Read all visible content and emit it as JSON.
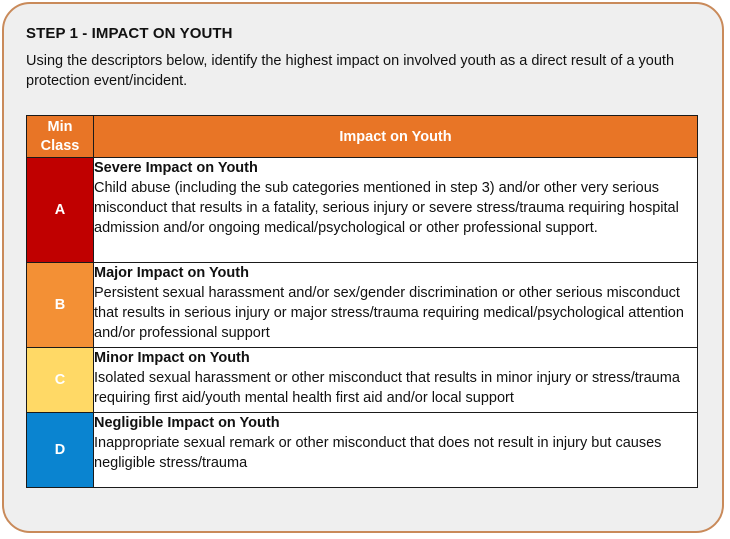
{
  "title": "STEP 1 - IMPACT ON YOUTH",
  "intro": "Using the descriptors below, identify the highest impact on involved youth as a direct result of a youth protection event/incident.",
  "table": {
    "header_class": "Min Class",
    "header_impact": "Impact on Youth",
    "rows": [
      {
        "class": "A",
        "color": "#c00000",
        "heading": "Severe Impact on Youth",
        "text": "Child abuse (including the sub categories mentioned in step 3) and/or other very serious misconduct that results in a fatality, serious injury or severe stress/trauma requiring hospital admission and/or ongoing medical/psychological or other professional support."
      },
      {
        "class": "B",
        "color": "#f39035",
        "heading": "Major Impact on Youth",
        "text": "Persistent sexual harassment and/or sex/gender discrimination or other serious misconduct that results in serious injury or major stress/trauma requiring medical/psychological attention and/or professional support"
      },
      {
        "class": "C",
        "color": "#ffd966",
        "heading": "Minor Impact on Youth",
        "text": "Isolated sexual harassment or other misconduct that results in minor injury or stress/trauma requiring first aid/youth mental health first aid and/or local support"
      },
      {
        "class": "D",
        "color": "#0a84d0",
        "heading": "Negligible Impact on Youth",
        "text": "Inappropriate sexual remark or other misconduct that does not result in injury but causes negligible stress/trauma"
      }
    ]
  }
}
